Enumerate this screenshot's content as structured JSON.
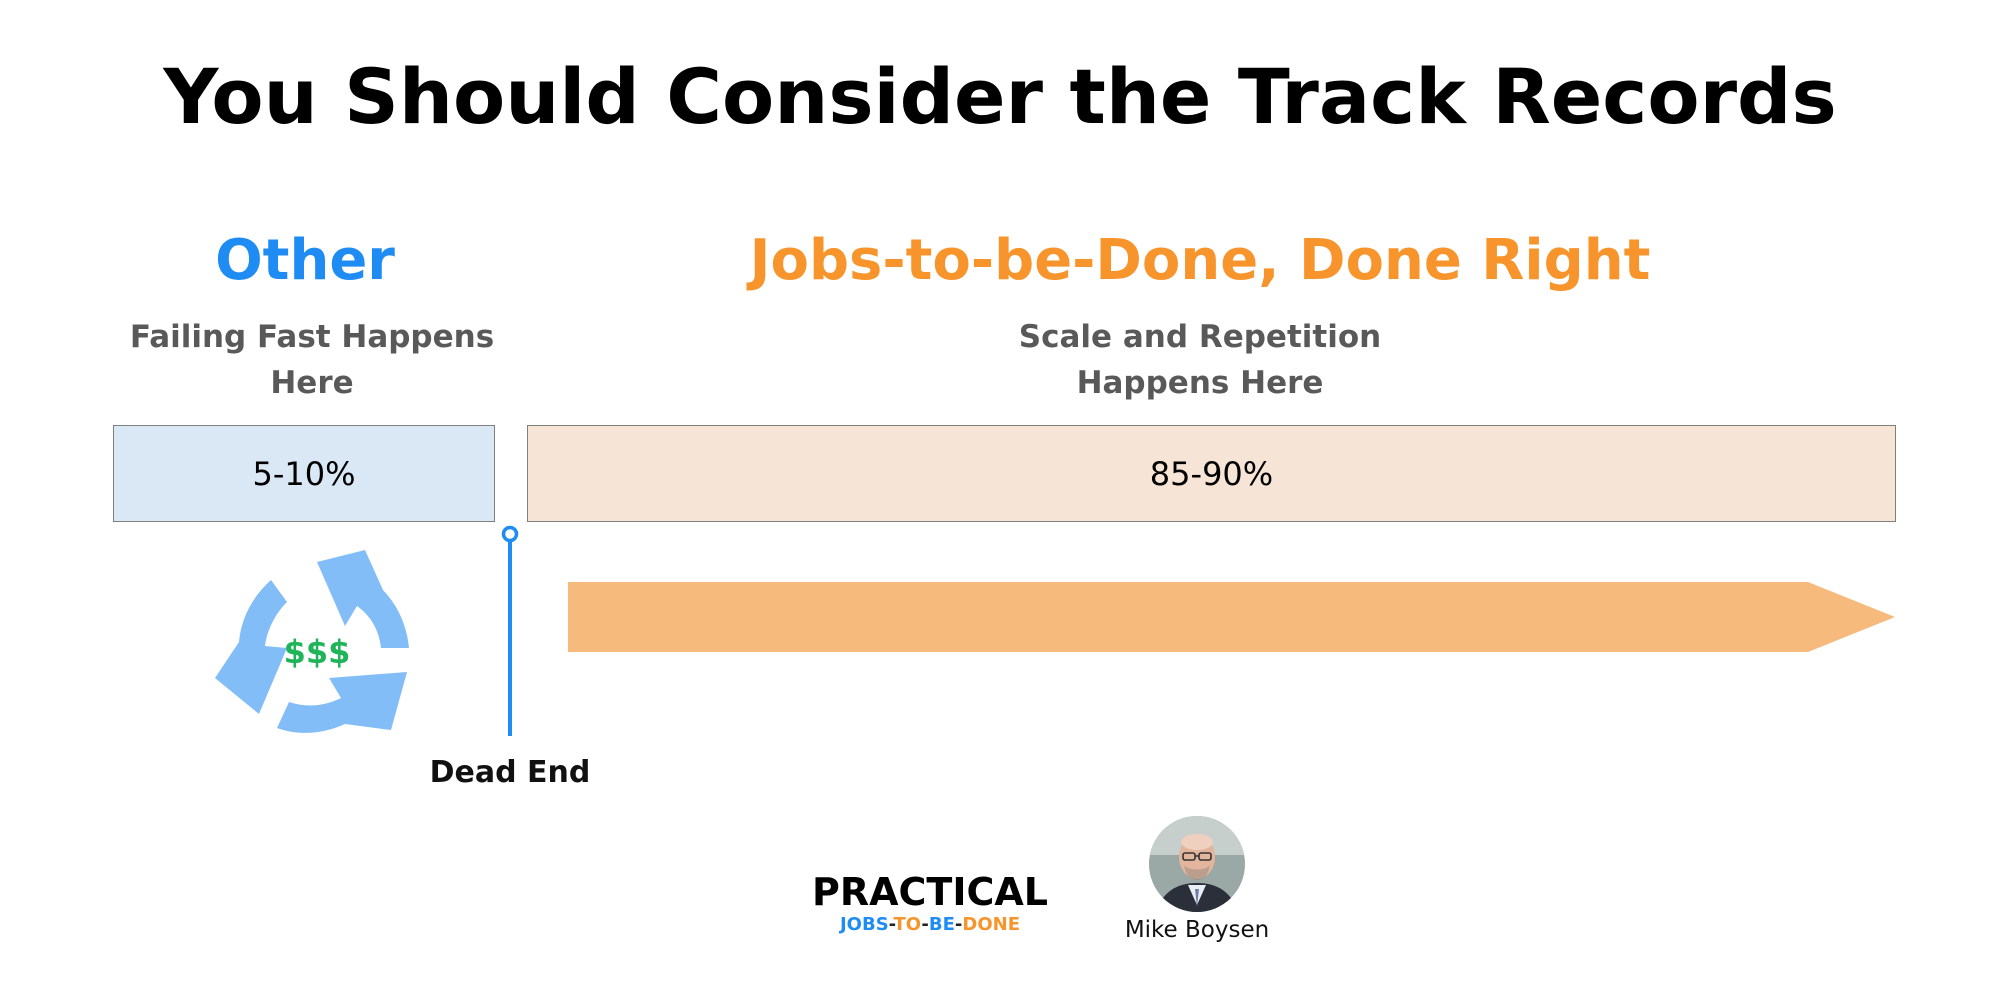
{
  "title": "You Should Consider the Track Records",
  "left": {
    "heading": "Other",
    "subtitle_line1": "Failing Fast Happens",
    "subtitle_line2": "Here",
    "percentage": "5-10%",
    "cycle_label": "$$$"
  },
  "right": {
    "heading": "Jobs-to-be-Done, Done Right",
    "subtitle_line1": "Scale and Repetition",
    "subtitle_line2": "Happens Here",
    "percentage": "85-90%"
  },
  "dead_end_label": "Dead End",
  "logo": {
    "main": "PRACTICAL",
    "sub_jobs": "JOBS",
    "sub_to": "TO",
    "sub_be": "BE",
    "sub_done": "DONE",
    "sub_dash": "-"
  },
  "author": {
    "name": "Mike Boysen"
  },
  "colors": {
    "blue_accent": "#1f8cf3",
    "orange_accent": "#f7952c",
    "left_box_fill": "#dae7f5",
    "right_box_fill": "#f6e5d6",
    "cycle_arrows": "#82bdf7",
    "dollar_green": "#20b45a",
    "progress_arrow": "#f6ba7d"
  }
}
